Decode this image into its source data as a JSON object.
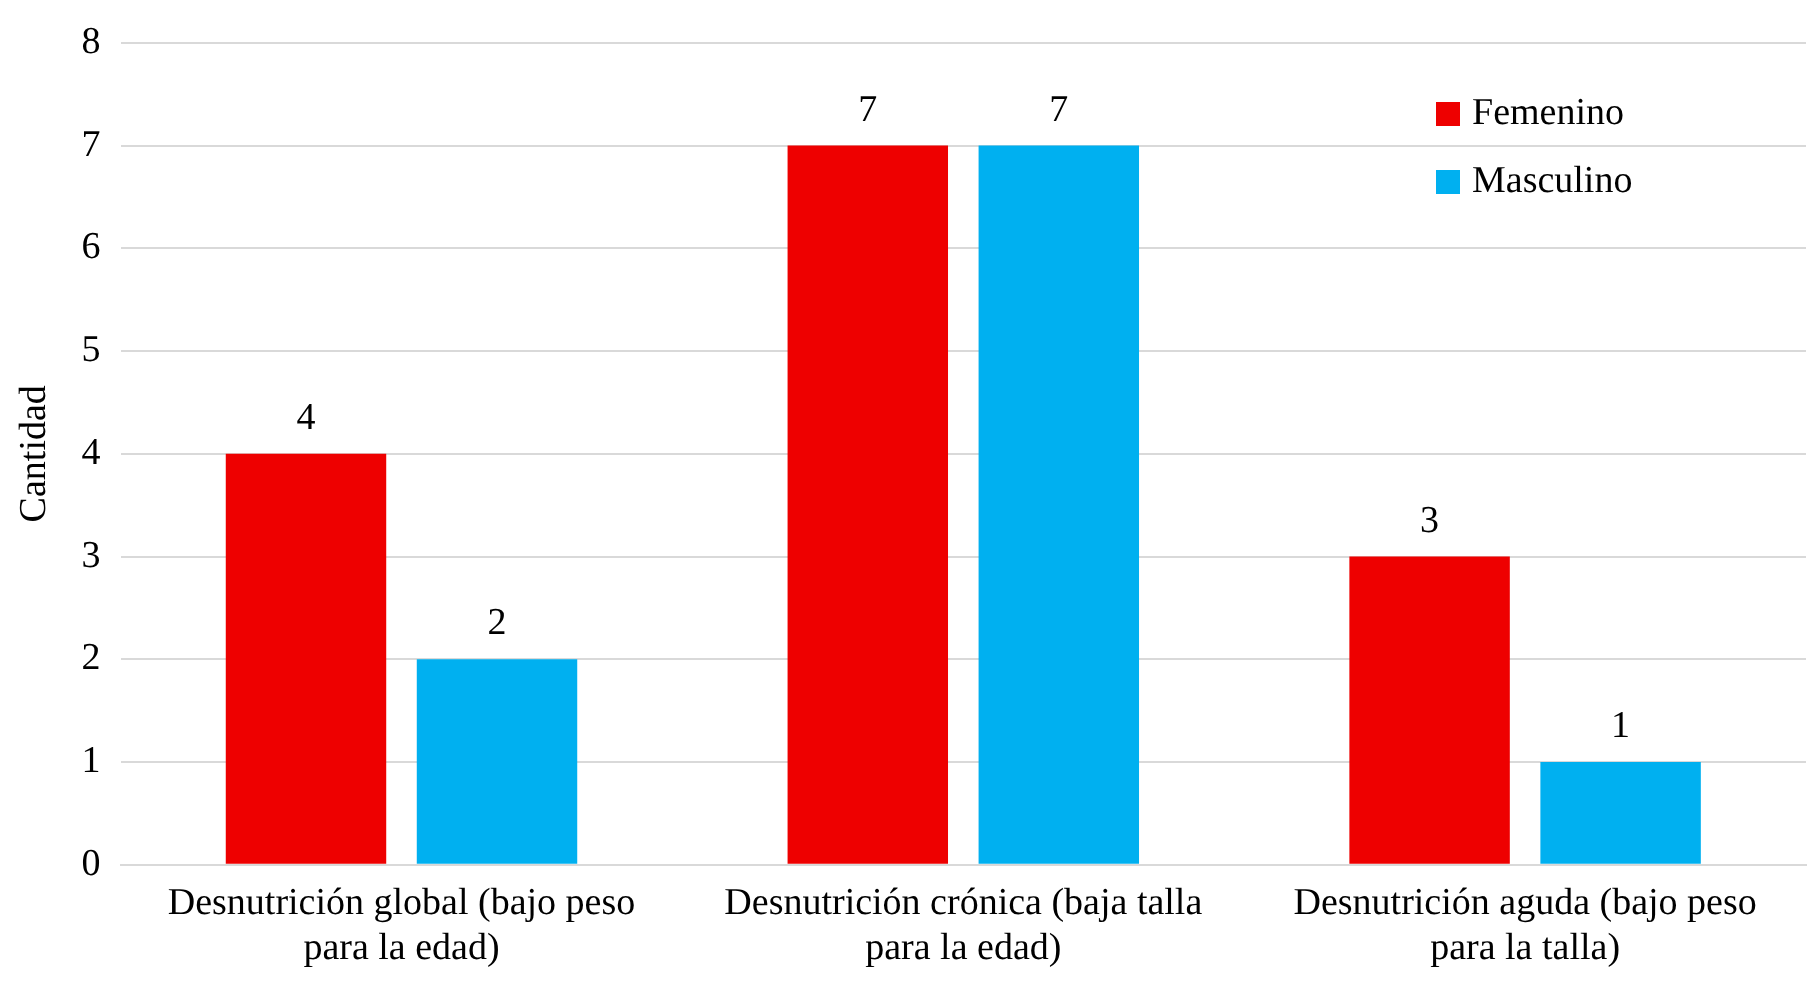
{
  "chart_data": {
    "type": "bar",
    "ylabel": "Cantidad",
    "categories": [
      "Desnutrición global (bajo peso para la edad)",
      "Desnutrición crónica (baja talla para la edad)",
      "Desnutrición aguda (bajo peso para la talla)"
    ],
    "series": [
      {
        "name": "Femenino",
        "color": "#ee0000",
        "values": [
          4,
          7,
          3
        ]
      },
      {
        "name": "Masculino",
        "color": "#00b0f0",
        "values": [
          2,
          7,
          1
        ]
      }
    ],
    "ylim": [
      0,
      8
    ],
    "yticks": [
      0,
      1,
      2,
      3,
      4,
      5,
      6,
      7,
      8
    ],
    "grid": "y",
    "legend": "top right",
    "data_labels": true
  }
}
